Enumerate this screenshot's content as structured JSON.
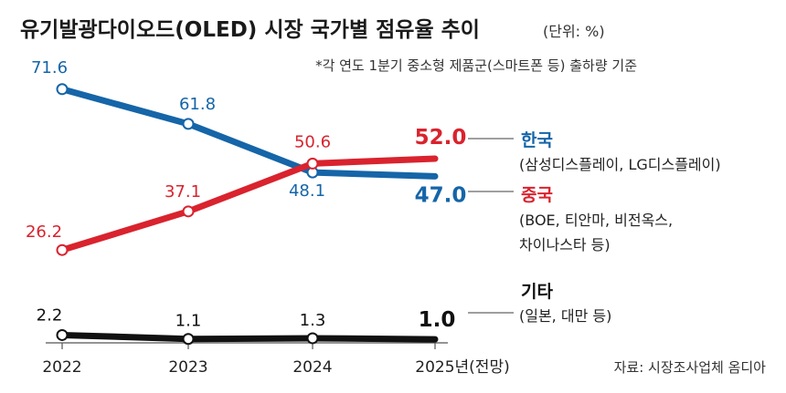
{
  "chart_data": {
    "type": "line",
    "title": "유기발광다이오드(OLED) 시장 국가별 점유율 추이",
    "unit": "(단위: %)",
    "subtitle": "*각 연도 1분기 중소형 제품군(스마트폰 등) 출하량 기준",
    "x": [
      "2022",
      "2023",
      "2024",
      "2025년(전망)"
    ],
    "ylim": [
      0,
      80
    ],
    "series": [
      {
        "name": "한국",
        "detail": "(삼성디스플레이, LG디스플레이)",
        "color": "#1565a8",
        "values": [
          71.6,
          61.8,
          48.1,
          47.0
        ],
        "labels": [
          "71.6",
          "61.8",
          "48.1",
          "47.0"
        ]
      },
      {
        "name": "중국",
        "detail_lines": [
          "(BOE, 티안마, 비전옥스,",
          "차이나스타 등)"
        ],
        "color": "#d9232e",
        "values": [
          26.2,
          37.1,
          50.6,
          52.0
        ],
        "labels": [
          "26.2",
          "37.1",
          "50.6",
          "52.0"
        ]
      },
      {
        "name": "기타",
        "detail": "(일본, 대만 등)",
        "color": "#111111",
        "values": [
          2.2,
          1.1,
          1.3,
          1.0
        ],
        "labels": [
          "2.2",
          "1.1",
          "1.3",
          "1.0"
        ]
      }
    ],
    "source": "자료: 시장조사업체 옴디아",
    "grid": false,
    "legend": "right"
  }
}
